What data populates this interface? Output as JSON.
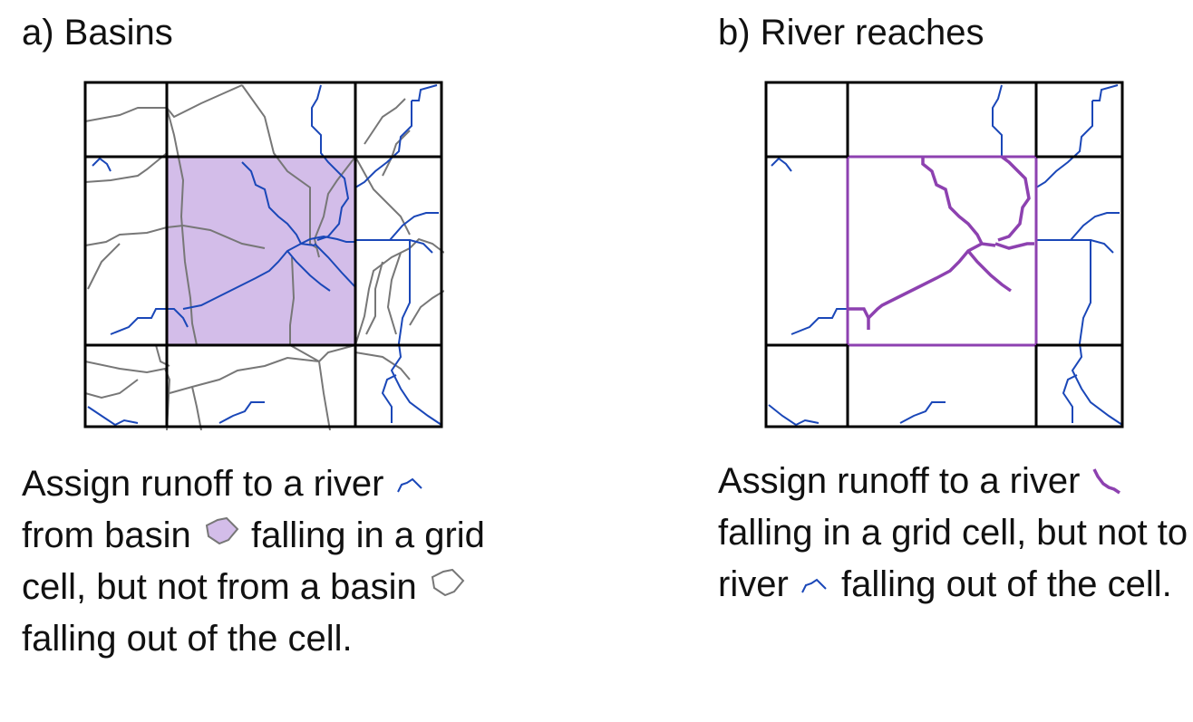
{
  "colors": {
    "river": "#1a47b8",
    "basin_outline": "#777777",
    "basin_fill": "#d3bde9",
    "selected_river": "#8d41b0",
    "grid": "#000000"
  },
  "panel_a": {
    "title": "a) Basins",
    "caption": {
      "part1": "Assign runoff to a river",
      "part2": "from basin",
      "part3": "falling in a grid cell, but not from a basin",
      "part4": "falling out of the cell."
    },
    "icons": [
      "river-icon",
      "basin-inside-icon",
      "basin-outside-icon"
    ]
  },
  "panel_b": {
    "title": "b) River reaches",
    "caption": {
      "part1": "Assign runoff to a river",
      "part2": "falling in a grid cell, but not to river",
      "part3": "falling out of the cell."
    },
    "icons": [
      "selected-river-icon",
      "river-icon"
    ]
  }
}
